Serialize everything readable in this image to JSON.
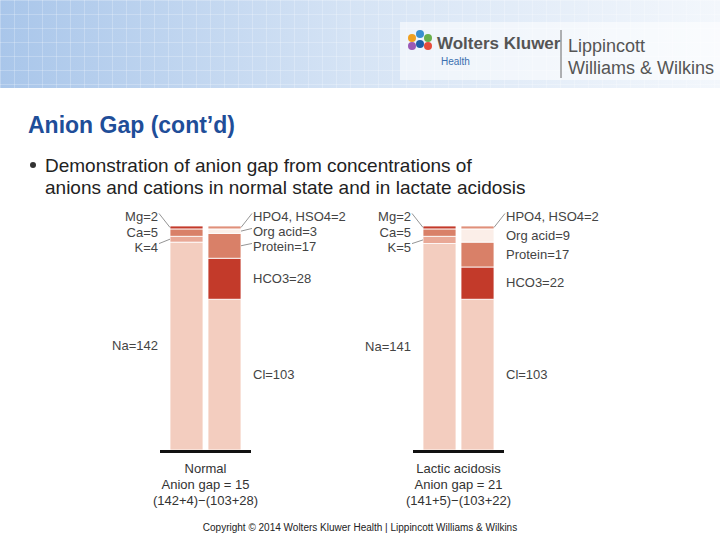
{
  "header": {
    "brand": "Wolters Kluwer",
    "division": "Health",
    "publisher_lines": [
      "Lippincott",
      "Williams & Wilkins"
    ]
  },
  "title": "Anion Gap (cont’d)",
  "bullet": [
    "Demonstration of anion gap from concentrations of",
    "anions and cations in normal state and in lactate acidosis"
  ],
  "footer": "Copyright © 2014 Wolters Kluwer Health | Lippincott Williams & Wilkins",
  "chart_data": [
    {
      "type": "bar",
      "stacked": true,
      "data_labels": true,
      "tick_labels": false,
      "categories": [
        null,
        null
      ],
      "ylim": [
        0,
        153
      ],
      "series": [
        {
          "values": [
            142,
            null
          ],
          "value_labels": [
            "Na=142",
            null
          ],
          "color": "#f3cdbf"
        },
        {
          "values": [
            4,
            null
          ],
          "value_labels": [
            "K=4",
            null
          ],
          "color": "#e9a896"
        },
        {
          "values": [
            5,
            null
          ],
          "value_labels": [
            "Ca=5",
            null
          ],
          "color": "#d98068"
        },
        {
          "values": [
            2,
            null
          ],
          "value_labels": [
            "Mg=2",
            null
          ],
          "color": "#c33a2a"
        },
        {
          "values": [
            null,
            103
          ],
          "value_labels": [
            null,
            "Cl=103"
          ],
          "color": "#f3cdbf"
        },
        {
          "values": [
            null,
            28
          ],
          "value_labels": [
            null,
            "HCO3=28"
          ],
          "color": "#c33a2a"
        },
        {
          "values": [
            null,
            17
          ],
          "value_labels": [
            null,
            "Protein=17"
          ],
          "color": "#d98068"
        },
        {
          "values": [
            null,
            3
          ],
          "value_labels": [
            null,
            "Org acid=3"
          ],
          "color": "#fbeee8"
        },
        {
          "values": [
            null,
            2
          ],
          "value_labels": [
            null,
            "HPO4, HSO4=2"
          ],
          "color": "#e0907a"
        }
      ],
      "annotations": [
        "Normal",
        "Anion gap = 15",
        "(142+4)−(103+28)"
      ]
    },
    {
      "type": "bar",
      "stacked": true,
      "data_labels": true,
      "tick_labels": false,
      "categories": [
        null,
        null
      ],
      "ylim": [
        0,
        153
      ],
      "series": [
        {
          "values": [
            141,
            null
          ],
          "value_labels": [
            "Na=141",
            null
          ],
          "color": "#f3cdbf"
        },
        {
          "values": [
            5,
            null
          ],
          "value_labels": [
            "K=5",
            null
          ],
          "color": "#e9a896"
        },
        {
          "values": [
            5,
            null
          ],
          "value_labels": [
            "Ca=5",
            null
          ],
          "color": "#d98068"
        },
        {
          "values": [
            2,
            null
          ],
          "value_labels": [
            "Mg=2",
            null
          ],
          "color": "#c33a2a"
        },
        {
          "values": [
            null,
            103
          ],
          "value_labels": [
            null,
            "Cl=103"
          ],
          "color": "#f3cdbf"
        },
        {
          "values": [
            null,
            22
          ],
          "value_labels": [
            null,
            "HCO3=22"
          ],
          "color": "#c33a2a"
        },
        {
          "values": [
            null,
            17
          ],
          "value_labels": [
            null,
            "Protein=17"
          ],
          "color": "#d98068"
        },
        {
          "values": [
            null,
            9
          ],
          "value_labels": [
            null,
            "Org acid=9"
          ],
          "color": "#fbeee8"
        },
        {
          "values": [
            null,
            2
          ],
          "value_labels": [
            null,
            "HPO4, HSO4=2"
          ],
          "color": "#e0907a"
        }
      ],
      "annotations": [
        "Lactic acidosis",
        "Anion gap = 21",
        "(141+5)−(103+22)"
      ]
    }
  ]
}
